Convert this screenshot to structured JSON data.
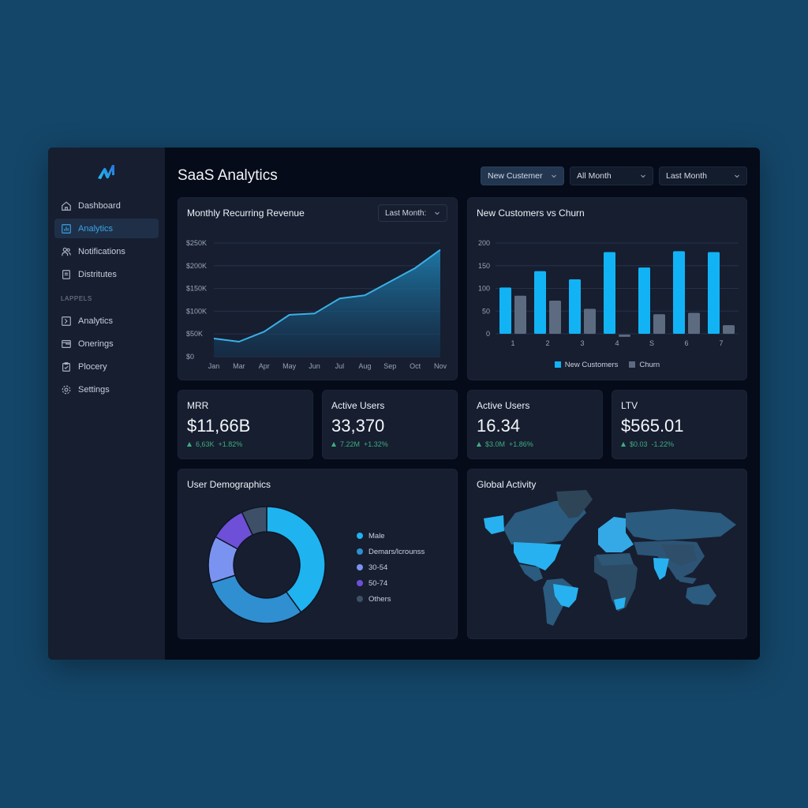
{
  "app": {
    "title": "SaaS Analytics",
    "colors": {
      "page_bg": "#144669",
      "sidebar_bg": "#161e30",
      "main_bg": "#050b18",
      "card_bg": "#161e30",
      "accent": "#1fb3f0",
      "positive": "#3fae7e"
    }
  },
  "sidebar": {
    "logo_icon": "brand-logo-icon",
    "items": [
      {
        "label": "Dashboard",
        "icon": "home-icon",
        "active": false
      },
      {
        "label": "Analytics",
        "icon": "bar-chart-icon",
        "active": true
      },
      {
        "label": "Notifications",
        "icon": "users-icon",
        "active": false
      },
      {
        "label": "Distritutes",
        "icon": "document-icon",
        "active": false
      }
    ],
    "section_label": "LAPPELS",
    "section_items": [
      {
        "label": "Analytics",
        "icon": "terminal-icon"
      },
      {
        "label": "Onerings",
        "icon": "folder-icon"
      },
      {
        "label": "Plocery",
        "icon": "clipboard-icon"
      },
      {
        "label": "Settings",
        "icon": "gear-icon"
      }
    ]
  },
  "header": {
    "filters": [
      {
        "value": "New Custemer",
        "icon": "chevron-down-icon"
      },
      {
        "value": "All Month",
        "icon": "chevron-down-icon"
      },
      {
        "value": "Last Month",
        "icon": "chevron-down-icon"
      }
    ]
  },
  "mrr_chart": {
    "title": "Monthly Recurring Revenue",
    "range_select": "Last Month:"
  },
  "churn_chart": {
    "title": "New Customers vs Churn"
  },
  "kpis": [
    {
      "label": "MRR",
      "value": "$11,66B",
      "delta_abs": "6,63K",
      "delta_pct": "+1.82%"
    },
    {
      "label": "Active Users",
      "value": "33,370",
      "delta_abs": "7.22M",
      "delta_pct": "+1.32%"
    },
    {
      "label": "Active Users",
      "value": "16.34",
      "delta_abs": "$3.0M",
      "delta_pct": "+1.86%"
    },
    {
      "label": "LTV",
      "value": "$565.01",
      "delta_abs": "$0.03",
      "delta_pct": "-1.22%"
    }
  ],
  "demographics": {
    "title": "User Demographics"
  },
  "global_activity": {
    "title": "Global Activity",
    "highlighted_regions": [
      "USA",
      "Alaska",
      "Brazil",
      "Europe",
      "India",
      "South Africa"
    ]
  },
  "chart_data": [
    {
      "type": "area",
      "title": "Monthly Recurring Revenue",
      "categories": [
        "Jan",
        "Mar",
        "Apr",
        "May",
        "Jun",
        "Jul",
        "Aug",
        "Sep",
        "Oct",
        "Nov"
      ],
      "values": [
        40,
        33,
        55,
        92,
        95,
        128,
        135,
        165,
        195,
        235
      ],
      "unit": "$K",
      "ytick_labels": [
        "$0",
        "$50K",
        "$100K",
        "$150K",
        "$200K",
        "$250K"
      ],
      "ylim": [
        0,
        250
      ],
      "grid": true,
      "color": "#3bb0e6"
    },
    {
      "type": "bar",
      "title": "New Customers vs Churn",
      "categories": [
        "1",
        "2",
        "3",
        "4",
        "S",
        "6",
        "7"
      ],
      "series": [
        {
          "name": "New Customers",
          "color": "#12b3f5",
          "values": [
            102,
            138,
            120,
            180,
            146,
            182,
            180
          ]
        },
        {
          "name": "Churn",
          "color": "#5d6b80",
          "values": [
            84,
            73,
            55,
            -5,
            43,
            46,
            19
          ]
        }
      ],
      "ytick_labels": [
        "0",
        "50",
        "100",
        "150",
        "200"
      ],
      "ylim": [
        0,
        200
      ],
      "grid": true,
      "legend_position": "bottom"
    },
    {
      "type": "pie",
      "title": "User Demographics",
      "donut": true,
      "labels": [
        "Male",
        "Demars/lcrounss",
        "30-54",
        "50-74",
        "Others"
      ],
      "values": [
        40,
        30,
        13,
        10,
        7
      ],
      "colors": [
        "#1fb3f0",
        "#2f8fd0",
        "#7b93f0",
        "#6e4fd8",
        "#3e5068"
      ],
      "legend_position": "right"
    }
  ]
}
